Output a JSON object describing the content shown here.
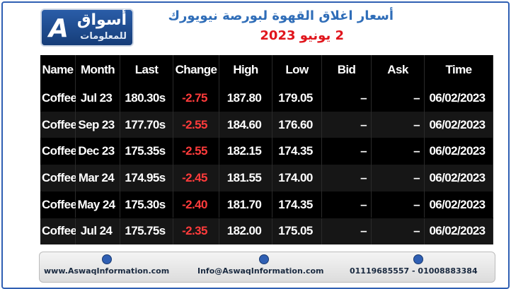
{
  "header": {
    "logo_title": "أسواق",
    "logo_subtitle": "للمعلومات",
    "title": "أسعار اغلاق القهوة لبورصة نيويورك",
    "date": "2 يونيو 2023"
  },
  "table": {
    "columns": [
      "Name",
      "Month",
      "Last",
      "Change",
      "High",
      "Low",
      "Bid",
      "Ask",
      "Time"
    ],
    "rows": [
      [
        "Coffee",
        "Jul 23",
        "180.30s",
        "-2.75",
        "187.80",
        "179.05",
        "–",
        "–",
        "06/02/2023"
      ],
      [
        "Coffee",
        "Sep 23",
        "177.70s",
        "-2.55",
        "184.60",
        "176.60",
        "–",
        "–",
        "06/02/2023"
      ],
      [
        "Coffee",
        "Dec 23",
        "175.35s",
        "-2.55",
        "182.15",
        "174.35",
        "–",
        "–",
        "06/02/2023"
      ],
      [
        "Coffee",
        "Mar 24",
        "174.95s",
        "-2.45",
        "181.55",
        "174.00",
        "–",
        "–",
        "06/02/2023"
      ],
      [
        "Coffee",
        "May 24",
        "175.30s",
        "-2.40",
        "181.70",
        "174.35",
        "–",
        "–",
        "06/02/2023"
      ],
      [
        "Coffee",
        "Jul 24",
        "175.75s",
        "-2.35",
        "182.00",
        "175.05",
        "–",
        "–",
        "06/02/2023"
      ]
    ]
  },
  "footer": {
    "website": "www.AswaqInformation.com",
    "email": "Info@AswaqInformation.com",
    "phones": "01119685557 - 01008883384"
  }
}
